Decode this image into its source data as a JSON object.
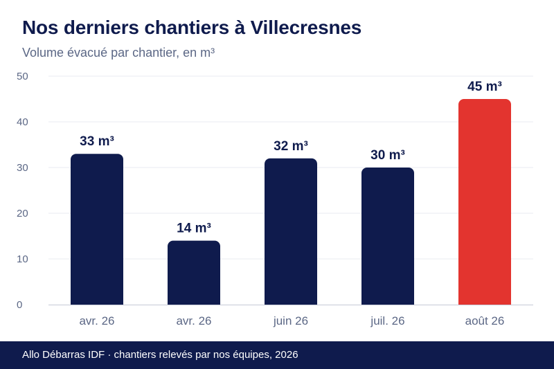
{
  "header": {
    "title": "Nos derniers chantiers à Villecresnes",
    "subtitle": "Volume évacué par chantier, en m³"
  },
  "footer": {
    "text": "Allo Débarras IDF · chantiers relevés par nos équipes, 2026"
  },
  "colors": {
    "bar": "#0f1b4d",
    "highlight": "#e3342f",
    "grid": "#e9ebf0",
    "axis": "#c5c9d6"
  },
  "chart_data": {
    "type": "bar",
    "title": "Nos derniers chantiers à Villecresnes",
    "subtitle": "Volume évacué par chantier, en m³",
    "categories": [
      "avr. 26",
      "avr. 26",
      "juin 26",
      "juil. 26",
      "août 26"
    ],
    "values": [
      33,
      14,
      32,
      30,
      45
    ],
    "data_labels": [
      "33 m³",
      "14 m³",
      "32 m³",
      "30 m³",
      "45 m³"
    ],
    "highlight_index": 4,
    "ylim": [
      0,
      50
    ],
    "yticks": [
      0,
      10,
      20,
      30,
      40,
      50
    ],
    "grid": true,
    "xlabel": "",
    "ylabel": ""
  }
}
